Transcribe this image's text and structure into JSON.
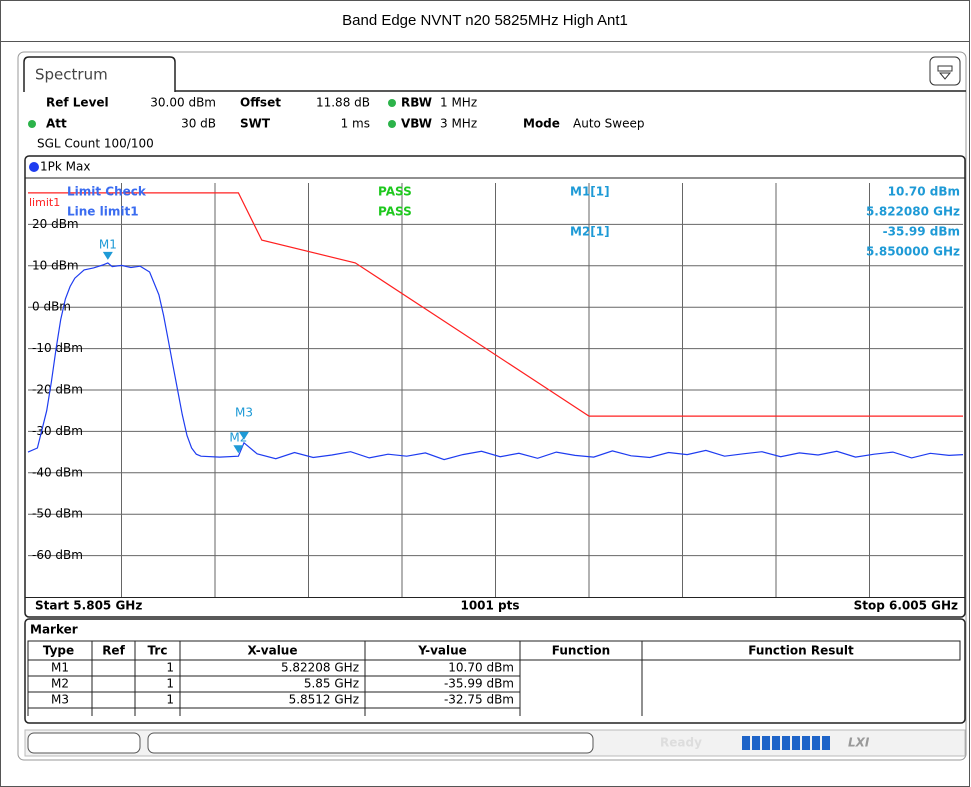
{
  "header": {
    "title": "Band Edge NVNT n20 5825MHz High Ant1"
  },
  "tab": "Spectrum",
  "settings": {
    "ref_level_label": "Ref Level",
    "ref_level": "30.00 dBm",
    "offset_label": "Offset",
    "offset": "11.88 dB",
    "rbw_label": "RBW",
    "rbw": "1 MHz",
    "att_label": "Att",
    "att": "30 dB",
    "swt_label": "SWT",
    "swt": "1 ms",
    "vbw_label": "VBW",
    "vbw": "3 MHz",
    "mode_label": "Mode",
    "mode": "Auto Sweep",
    "sgl_count": "SGL Count 100/100"
  },
  "chart_data": {
    "type": "line",
    "xlim": [
      5.805,
      6.005
    ],
    "ylim": [
      -70,
      30
    ],
    "yticks": [
      {
        "value": 20,
        "label": "20 dBm"
      },
      {
        "value": 10,
        "label": "10 dBm"
      },
      {
        "value": 0,
        "label": "0 dBm"
      },
      {
        "value": -10,
        "label": "-10 dBm"
      },
      {
        "value": -20,
        "label": "-20 dBm"
      },
      {
        "value": -30,
        "label": "-30 dBm"
      },
      {
        "value": -40,
        "label": "-40 dBm"
      },
      {
        "value": -50,
        "label": "-50 dBm"
      },
      {
        "value": -60,
        "label": "-60 dBm"
      }
    ],
    "grid": true,
    "series": [
      {
        "name": "1Pk Max",
        "color": "#1e3cf0",
        "x": [
          5.805,
          5.807,
          5.809,
          5.81,
          5.811,
          5.812,
          5.813,
          5.814,
          5.815,
          5.817,
          5.819,
          5.821,
          5.82208,
          5.823,
          5.825,
          5.827,
          5.829,
          5.831,
          5.833,
          5.834,
          5.835,
          5.836,
          5.837,
          5.838,
          5.839,
          5.84,
          5.841,
          5.842,
          5.846,
          5.85,
          5.8512,
          5.854,
          5.858,
          5.862,
          5.866,
          5.87,
          5.874,
          5.878,
          5.882,
          5.886,
          5.89,
          5.894,
          5.898,
          5.902,
          5.906,
          5.91,
          5.914,
          5.918,
          5.922,
          5.926,
          5.93,
          5.934,
          5.938,
          5.942,
          5.946,
          5.95,
          5.954,
          5.958,
          5.962,
          5.966,
          5.97,
          5.974,
          5.978,
          5.982,
          5.986,
          5.99,
          5.994,
          5.998,
          6.002,
          6.005
        ],
        "values": [
          -35,
          -34,
          -25,
          -18,
          -10,
          -3,
          2,
          5,
          7,
          9,
          9.5,
          10.2,
          10.7,
          9.8,
          10.1,
          9.6,
          9.9,
          8.5,
          3,
          -2,
          -8,
          -14,
          -20,
          -26,
          -31,
          -34,
          -35.5,
          -36,
          -36.2,
          -35.99,
          -32.75,
          -35.4,
          -36.6,
          -35.1,
          -36.3,
          -35.7,
          -34.9,
          -36.4,
          -35.5,
          -36.0,
          -35.2,
          -36.8,
          -35.6,
          -34.8,
          -36.1,
          -35.3,
          -36.5,
          -35.0,
          -35.8,
          -36.2,
          -34.7,
          -35.9,
          -36.3,
          -35.1,
          -35.6,
          -34.6,
          -36.0,
          -35.4,
          -34.9,
          -36.1,
          -35.2,
          -35.7,
          -34.8,
          -36.2,
          -35.5,
          -35.0,
          -36.4,
          -35.3,
          -35.8,
          -35.6
        ]
      }
    ],
    "limit": {
      "name": "limit1",
      "color": "#ff2020",
      "x": [
        5.805,
        5.85,
        5.855,
        5.875,
        5.925,
        6.005
      ],
      "values": [
        27.6,
        27.6,
        16.2,
        10.7,
        -26.3,
        -26.3
      ]
    },
    "markers": [
      {
        "name": "M1",
        "x": 5.82208,
        "y": 10.7
      },
      {
        "name": "M2",
        "x": 5.85,
        "y": -35.99
      },
      {
        "name": "M3",
        "x": 5.8512,
        "y": -32.75
      }
    ],
    "limit_check": [
      {
        "text": "Limit Check",
        "result": "PASS"
      },
      {
        "text": "Line limit1",
        "result": "PASS"
      }
    ],
    "readouts": [
      {
        "label": "M1[1]",
        "y": "10.70 dBm",
        "x": "5.822080 GHz"
      },
      {
        "label": "M2[1]",
        "y": "-35.99 dBm",
        "x": "5.850000 GHz"
      }
    ],
    "start": "Start 5.805 GHz",
    "points": "1001 pts",
    "stop": "Stop 6.005 GHz"
  },
  "marker_table": {
    "title": "Marker",
    "columns": [
      "Type",
      "Ref",
      "Trc",
      "X-value",
      "Y-value",
      "Function",
      "Function Result"
    ],
    "rows": [
      {
        "type": "M1",
        "trc": "1",
        "x": "5.82208 GHz",
        "y": "10.70 dBm"
      },
      {
        "type": "M2",
        "trc": "1",
        "x": "5.85 GHz",
        "y": "-35.99 dBm"
      },
      {
        "type": "M3",
        "trc": "1",
        "x": "5.8512 GHz",
        "y": "-32.75 dBm"
      }
    ]
  },
  "status": {
    "text": "Ready",
    "logo": "LXI"
  }
}
